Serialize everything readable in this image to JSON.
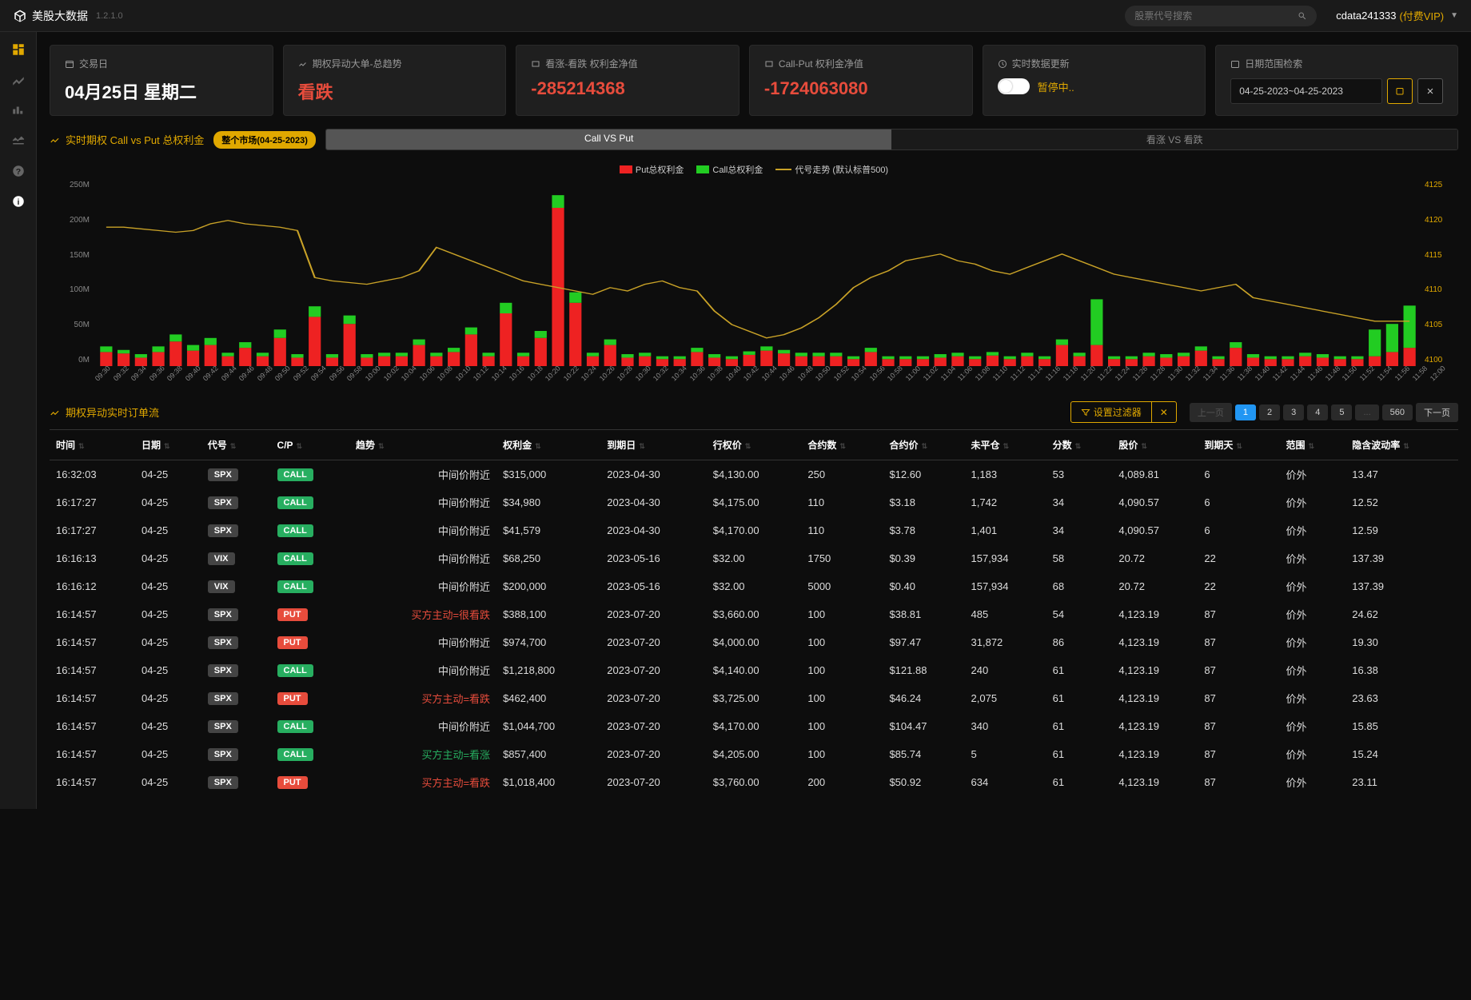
{
  "app": {
    "name": "美股大数据",
    "version": "1.2.1.0"
  },
  "search": {
    "placeholder": "股票代号搜索"
  },
  "user": {
    "name": "cdata241333",
    "tag": "(付费VIP)"
  },
  "cards": {
    "trading_day": {
      "label": "交易日",
      "value": "04月25日 星期二"
    },
    "big_order_trend": {
      "label": "期权异动大单-总趋势",
      "value": "看跌"
    },
    "call_put_net": {
      "label": "看涨-看跌 权利金净值",
      "value": "-285214368"
    },
    "call_put_profit": {
      "label": "Call-Put 权利金净值",
      "value": "-1724063080"
    },
    "realtime": {
      "label": "实时数据更新",
      "status": "暂停中.."
    },
    "date_search": {
      "label": "日期范围检索",
      "value": "04-25-2023~04-25-2023"
    }
  },
  "chart_section": {
    "title": "实时期权 Call vs Put 总权利金",
    "pill": "整个市场(04-25-2023)",
    "tabs": [
      "Call VS Put",
      "看涨 VS 看跌"
    ],
    "active_tab": 0,
    "legend": [
      {
        "label": "Put总权利金",
        "color": "#e22"
      },
      {
        "label": "Call总权利金",
        "color": "#2c2"
      },
      {
        "label": "代号走势 (默认标普500)",
        "color": "#c9a227"
      }
    ],
    "y_left": [
      "250M",
      "200M",
      "150M",
      "100M",
      "50M",
      "0M"
    ],
    "y_right": [
      "4125",
      "4120",
      "4115",
      "4110",
      "4105",
      "4100"
    ],
    "x_ticks": [
      "09:30",
      "09:32",
      "09:34",
      "09:36",
      "09:38",
      "09:40",
      "09:42",
      "09:44",
      "09:46",
      "09:48",
      "09:50",
      "09:52",
      "09:54",
      "09:56",
      "09:58",
      "10:00",
      "10:02",
      "10:04",
      "10:06",
      "10:08",
      "10:10",
      "10:12",
      "10:14",
      "10:16",
      "10:18",
      "10:20",
      "10:22",
      "10:24",
      "10:26",
      "10:28",
      "10:30",
      "10:32",
      "10:34",
      "10:36",
      "10:38",
      "10:40",
      "10:42",
      "10:44",
      "10:46",
      "10:48",
      "10:50",
      "10:52",
      "10:54",
      "10:56",
      "10:58",
      "11:00",
      "11:02",
      "11:04",
      "11:06",
      "11:08",
      "11:10",
      "11:12",
      "11:14",
      "11:16",
      "11:18",
      "11:20",
      "11:22",
      "11:24",
      "11:26",
      "11:28",
      "11:30",
      "11:32",
      "11:34",
      "11:36",
      "11:38",
      "11:40",
      "11:42",
      "11:44",
      "11:46",
      "11:48",
      "11:50",
      "11:52",
      "11:54",
      "11:56",
      "11:58",
      "12:00"
    ],
    "bars": {
      "put": [
        20,
        18,
        12,
        20,
        35,
        22,
        30,
        14,
        26,
        14,
        40,
        12,
        70,
        12,
        60,
        12,
        14,
        14,
        30,
        14,
        20,
        45,
        14,
        75,
        14,
        40,
        225,
        90,
        14,
        30,
        12,
        14,
        10,
        10,
        20,
        12,
        10,
        16,
        22,
        18,
        14,
        14,
        14,
        10,
        20,
        10,
        10,
        10,
        12,
        14,
        10,
        15,
        10,
        14,
        10,
        30,
        14,
        30,
        10,
        10,
        14,
        12,
        14,
        22,
        10,
        26,
        12,
        10,
        10,
        14,
        12,
        10,
        10,
        14,
        20,
        26
      ],
      "call": [
        8,
        5,
        5,
        8,
        10,
        8,
        10,
        5,
        8,
        5,
        12,
        5,
        15,
        5,
        12,
        5,
        5,
        5,
        8,
        5,
        6,
        10,
        5,
        15,
        5,
        10,
        18,
        15,
        5,
        8,
        5,
        5,
        4,
        4,
        6,
        5,
        4,
        5,
        6,
        5,
        5,
        5,
        5,
        4,
        6,
        4,
        4,
        4,
        5,
        5,
        4,
        5,
        4,
        5,
        4,
        8,
        5,
        65,
        4,
        4,
        5,
        5,
        5,
        6,
        4,
        8,
        5,
        4,
        4,
        5,
        5,
        4,
        4,
        38,
        40,
        60
      ]
    },
    "line": [
      78,
      78,
      77,
      76,
      75,
      76,
      80,
      82,
      80,
      79,
      78,
      76,
      48,
      46,
      45,
      44,
      46,
      48,
      52,
      66,
      62,
      58,
      54,
      50,
      46,
      44,
      42,
      40,
      38,
      42,
      40,
      44,
      46,
      42,
      40,
      28,
      20,
      16,
      12,
      14,
      18,
      24,
      32,
      42,
      48,
      52,
      58,
      60,
      62,
      58,
      56,
      52,
      50,
      54,
      58,
      62,
      58,
      54,
      50,
      48,
      46,
      44,
      42,
      40,
      42,
      44,
      36,
      34,
      32,
      30,
      28,
      26,
      24,
      22,
      22,
      22
    ]
  },
  "table_section": {
    "title": "期权异动实时订单流",
    "filter_btn": "设置过滤器",
    "pagination": {
      "prev": "上一页",
      "pages": [
        "1",
        "2",
        "3",
        "4",
        "5"
      ],
      "ellipsis": "...",
      "last": "560",
      "next": "下一页",
      "active": 0
    }
  },
  "columns": [
    "时间",
    "日期",
    "代号",
    "C/P",
    "趋势",
    "权利金",
    "到期日",
    "行权价",
    "合约数",
    "合约价",
    "未平仓",
    "分数",
    "股价",
    "到期天",
    "范围",
    "隐含波动率"
  ],
  "rows": [
    {
      "time": "16:32:03",
      "date": "04-25",
      "sym": "SPX",
      "cp": "CALL",
      "trend": "中间价附近",
      "tc": "white",
      "prem": "$315,000",
      "exp": "2023-04-30",
      "strike": "$4,130.00",
      "contracts": "250",
      "cprice": "$12.60",
      "oi": "1,183",
      "score": "53",
      "stock": "4,089.81",
      "dte": "6",
      "range": "价外",
      "iv": "13.47"
    },
    {
      "time": "16:17:27",
      "date": "04-25",
      "sym": "SPX",
      "cp": "CALL",
      "trend": "中间价附近",
      "tc": "white",
      "prem": "$34,980",
      "exp": "2023-04-30",
      "strike": "$4,175.00",
      "contracts": "110",
      "cprice": "$3.18",
      "oi": "1,742",
      "score": "34",
      "stock": "4,090.57",
      "dte": "6",
      "range": "价外",
      "iv": "12.52"
    },
    {
      "time": "16:17:27",
      "date": "04-25",
      "sym": "SPX",
      "cp": "CALL",
      "trend": "中间价附近",
      "tc": "white",
      "prem": "$41,579",
      "exp": "2023-04-30",
      "strike": "$4,170.00",
      "contracts": "110",
      "cprice": "$3.78",
      "oi": "1,401",
      "score": "34",
      "stock": "4,090.57",
      "dte": "6",
      "range": "价外",
      "iv": "12.59"
    },
    {
      "time": "16:16:13",
      "date": "04-25",
      "sym": "VIX",
      "cp": "CALL",
      "trend": "中间价附近",
      "tc": "white",
      "prem": "$68,250",
      "exp": "2023-05-16",
      "strike": "$32.00",
      "contracts": "1750",
      "cprice": "$0.39",
      "oi": "157,934",
      "score": "58",
      "stock": "20.72",
      "dte": "22",
      "range": "价外",
      "iv": "137.39"
    },
    {
      "time": "16:16:12",
      "date": "04-25",
      "sym": "VIX",
      "cp": "CALL",
      "trend": "中间价附近",
      "tc": "white",
      "prem": "$200,000",
      "exp": "2023-05-16",
      "strike": "$32.00",
      "contracts": "5000",
      "cprice": "$0.40",
      "oi": "157,934",
      "score": "68",
      "stock": "20.72",
      "dte": "22",
      "range": "价外",
      "iv": "137.39"
    },
    {
      "time": "16:14:57",
      "date": "04-25",
      "sym": "SPX",
      "cp": "PUT",
      "trend": "买方主动=很看跌",
      "tc": "red",
      "prem": "$388,100",
      "exp": "2023-07-20",
      "strike": "$3,660.00",
      "contracts": "100",
      "cprice": "$38.81",
      "oi": "485",
      "score": "54",
      "stock": "4,123.19",
      "dte": "87",
      "range": "价外",
      "iv": "24.62"
    },
    {
      "time": "16:14:57",
      "date": "04-25",
      "sym": "SPX",
      "cp": "PUT",
      "trend": "中间价附近",
      "tc": "white",
      "prem": "$974,700",
      "exp": "2023-07-20",
      "strike": "$4,000.00",
      "contracts": "100",
      "cprice": "$97.47",
      "oi": "31,872",
      "score": "86",
      "stock": "4,123.19",
      "dte": "87",
      "range": "价外",
      "iv": "19.30"
    },
    {
      "time": "16:14:57",
      "date": "04-25",
      "sym": "SPX",
      "cp": "CALL",
      "trend": "中间价附近",
      "tc": "white",
      "prem": "$1,218,800",
      "exp": "2023-07-20",
      "strike": "$4,140.00",
      "contracts": "100",
      "cprice": "$121.88",
      "oi": "240",
      "score": "61",
      "stock": "4,123.19",
      "dte": "87",
      "range": "价外",
      "iv": "16.38"
    },
    {
      "time": "16:14:57",
      "date": "04-25",
      "sym": "SPX",
      "cp": "PUT",
      "trend": "买方主动=看跌",
      "tc": "red",
      "prem": "$462,400",
      "exp": "2023-07-20",
      "strike": "$3,725.00",
      "contracts": "100",
      "cprice": "$46.24",
      "oi": "2,075",
      "score": "61",
      "stock": "4,123.19",
      "dte": "87",
      "range": "价外",
      "iv": "23.63"
    },
    {
      "time": "16:14:57",
      "date": "04-25",
      "sym": "SPX",
      "cp": "CALL",
      "trend": "中间价附近",
      "tc": "white",
      "prem": "$1,044,700",
      "exp": "2023-07-20",
      "strike": "$4,170.00",
      "contracts": "100",
      "cprice": "$104.47",
      "oi": "340",
      "score": "61",
      "stock": "4,123.19",
      "dte": "87",
      "range": "价外",
      "iv": "15.85"
    },
    {
      "time": "16:14:57",
      "date": "04-25",
      "sym": "SPX",
      "cp": "CALL",
      "trend": "买方主动=看涨",
      "tc": "green",
      "prem": "$857,400",
      "exp": "2023-07-20",
      "strike": "$4,205.00",
      "contracts": "100",
      "cprice": "$85.74",
      "oi": "5",
      "score": "61",
      "stock": "4,123.19",
      "dte": "87",
      "range": "价外",
      "iv": "15.24"
    },
    {
      "time": "16:14:57",
      "date": "04-25",
      "sym": "SPX",
      "cp": "PUT",
      "trend": "买方主动=看跌",
      "tc": "red",
      "prem": "$1,018,400",
      "exp": "2023-07-20",
      "strike": "$3,760.00",
      "contracts": "200",
      "cprice": "$50.92",
      "oi": "634",
      "score": "61",
      "stock": "4,123.19",
      "dte": "87",
      "range": "价外",
      "iv": "23.11"
    }
  ]
}
